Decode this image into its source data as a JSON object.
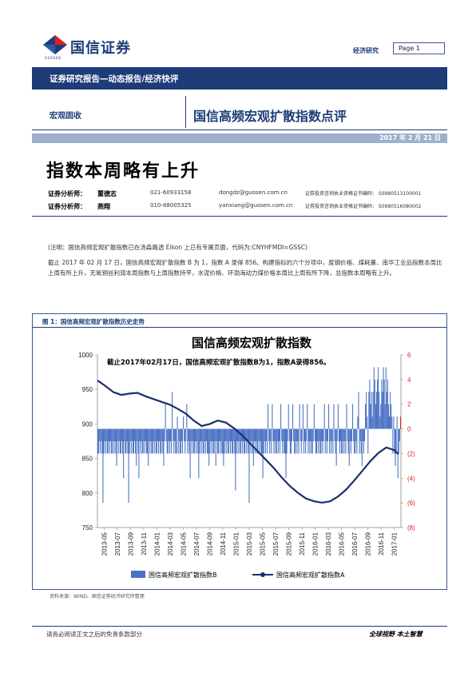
{
  "header": {
    "logo_text": "国信证券",
    "logo_sub": "GUOSEN",
    "report_category": "经济研究",
    "page_label": "Page 1"
  },
  "band": {
    "text": "证券研究报告—动态报告/经济快评"
  },
  "section": {
    "label": "宏观固收",
    "headline": "国信高频宏观扩散指数点评"
  },
  "date": "2017 年 2 月 21 日",
  "title": "指数本周略有上升",
  "analysts": [
    {
      "role": "证券分析师：",
      "name": "董德志",
      "phone": "021-60933158",
      "email": "dongdz@guosen.com.cn",
      "cert": "证券投资咨询执业资格证书编码：  S0980513100001"
    },
    {
      "role": "证券分析师：",
      "name": "燕翔",
      "phone": "010-88005325",
      "email": "yanxiang@guosen.com.cn",
      "cert": "证券投资咨询执业资格证书编码：  S0980516080002"
    }
  ],
  "note": "(注明：国信高频宏观扩散指数已在汤森路透 Eikon 上已有专属页面，代码为:CNYHFMDI=GSSC)",
  "body_text": "截止 2017 年 02 月 17 日，国信高频宏观扩散指数 B 为 1，指数 A 录得 856。构建指标的六个分项中，废钢价格、煤耗量、南华工业品指数本周比上周有所上升，无氧铜丝利润本周指数与上周指数持平，水泥价格、环渤海动力煤价格本周比上周有所下降，总指数本周略有上升。",
  "figure": {
    "label": "图 1：国信高频宏观扩散指数历史走势",
    "source": "资料来源：WIND、国信证券经济研究所整理"
  },
  "chart_data": {
    "type": "bar+line",
    "title": "国信高频宏观扩散指数",
    "annotation": "截止2017年02月17日，国信高频宏观扩散指数B为1，指数A录得856。",
    "x_tick_labels": [
      "2013-05",
      "2013-07",
      "2013-09",
      "2013-11",
      "2014-01",
      "2014-03",
      "2014-05",
      "2014-07",
      "2014-09",
      "2014-11",
      "2015-01",
      "2015-03",
      "2015-05",
      "2015-07",
      "2015-09",
      "2015-11",
      "2016-01",
      "2016-03",
      "2016-05",
      "2016-07",
      "2016-09",
      "2016-11",
      "2017-01"
    ],
    "left_axis": {
      "ticks": [
        "1000",
        "950",
        "900",
        "850",
        "800",
        "750"
      ],
      "ylim": [
        750,
        1000
      ]
    },
    "right_axis": {
      "ticks": [
        "6",
        "4",
        "2",
        "0",
        "(2)",
        "(4)",
        "(6)",
        "(8)"
      ],
      "ylim": [
        -8,
        6
      ]
    },
    "series": [
      {
        "name": "国信高频宏观扩散指数B",
        "kind": "bar",
        "color": "#4a72c4",
        "last_color": "#e02020",
        "values": [
          -2,
          -2,
          -1,
          -2,
          -1,
          -2,
          -6,
          -2,
          -1,
          -2,
          -1,
          -2,
          -2,
          -1,
          -2,
          -1,
          -2,
          -2,
          -1,
          -2,
          -1,
          -2,
          -3,
          -1,
          -2,
          -1,
          -2,
          -2,
          -1,
          -2,
          -4,
          -1,
          -2,
          -2,
          -1,
          -2,
          -6,
          -2,
          -1,
          -2,
          -1,
          -2,
          -2,
          -1,
          -2,
          -3,
          -1,
          -2,
          -4,
          -1,
          -2,
          -1,
          -2,
          -2,
          -1,
          -2,
          -1,
          -2,
          -2,
          -3,
          -1,
          -2,
          -1,
          -2,
          -2,
          -1,
          -2,
          -1,
          -2,
          -2,
          -1,
          -2,
          -1,
          -2,
          -2,
          -1,
          -2,
          -3,
          -1,
          2,
          -1,
          -2,
          -2,
          -1,
          -2,
          -1,
          -2,
          3,
          -1,
          -2,
          -1,
          -2,
          -2,
          1,
          -2,
          -1,
          -2,
          -2,
          -1,
          -2,
          1,
          -1,
          -2,
          -1,
          2,
          -2,
          -1,
          -2,
          -4,
          -1,
          -2,
          -1,
          -2,
          -2,
          -1,
          -2,
          -1,
          -2,
          -4,
          -2,
          -1,
          -2,
          -1,
          -2,
          -2,
          -1,
          -2,
          -1,
          -2,
          -2,
          -3,
          -2,
          -1,
          -2,
          -1,
          -2,
          -2,
          -1,
          -3,
          -1,
          -2,
          -2,
          -1,
          -2,
          -1,
          -2,
          -2,
          -3,
          -2,
          -1,
          -2,
          -1,
          -2,
          -2,
          -1,
          -2,
          -1,
          -2,
          -2,
          -1,
          -2,
          -5,
          -2,
          -1,
          -2,
          -1,
          -2,
          -2,
          -1,
          -2,
          -1,
          -2,
          -2,
          -1,
          -2,
          -1,
          -2,
          -6,
          -1,
          -2,
          -1,
          -2,
          -3,
          -1,
          -2,
          -1,
          -2,
          -2,
          -1,
          -2,
          -1,
          -2,
          -2,
          -4,
          -2,
          -1,
          -2,
          -1,
          -2,
          2,
          -1,
          -2,
          -1,
          -2,
          2,
          -1,
          -2,
          -1,
          -2,
          -2,
          -1,
          -2,
          -1,
          -2,
          2,
          -1,
          -2,
          -1,
          -2,
          -2,
          -4,
          -2,
          -1,
          2,
          -1,
          -2,
          -2,
          -1,
          2,
          -1,
          -2,
          -2,
          -1,
          -2,
          -1,
          -2,
          2,
          -1,
          -2,
          -1,
          2,
          -2,
          -1,
          -2,
          -1,
          2,
          -2,
          -1,
          -2,
          -1,
          -2,
          -2,
          -1,
          2,
          -1,
          -2,
          -2,
          -1,
          -2,
          -1,
          -2,
          -2,
          -1,
          -2,
          -1,
          2,
          -2,
          -1,
          -2,
          -1,
          2,
          -2,
          -1,
          -2,
          -1,
          -2,
          2,
          -1,
          -2,
          -3,
          -1,
          2,
          -1,
          -2,
          -1,
          -2,
          -2,
          -1,
          -2,
          -1,
          -2,
          2,
          -1,
          -2,
          -3,
          -1,
          -2,
          -1,
          2,
          -1,
          -2,
          -2,
          -1,
          -2,
          1,
          3,
          -2,
          -1,
          -2,
          -3,
          -1,
          -2,
          -1,
          2,
          3,
          1,
          -2,
          3,
          4,
          2,
          3,
          1,
          3,
          5,
          4,
          2,
          3,
          4,
          5,
          3,
          1,
          2,
          4,
          3,
          5,
          4,
          2,
          5,
          3,
          4,
          2,
          1,
          3,
          2,
          1,
          -2,
          1,
          -2,
          -3,
          -2,
          1,
          -4,
          -2,
          -1,
          1
        ]
      },
      {
        "name": "国信高频宏观扩散指数A",
        "kind": "line",
        "color": "#1a2f6e",
        "anchor_points": [
          [
            0,
            963
          ],
          [
            10,
            955
          ],
          [
            20,
            946
          ],
          [
            30,
            942
          ],
          [
            40,
            944
          ],
          [
            50,
            945
          ],
          [
            60,
            940
          ],
          [
            70,
            936
          ],
          [
            80,
            932
          ],
          [
            90,
            928
          ],
          [
            100,
            922
          ],
          [
            110,
            915
          ],
          [
            120,
            905
          ],
          [
            130,
            897
          ],
          [
            140,
            900
          ],
          [
            150,
            905
          ],
          [
            160,
            902
          ],
          [
            170,
            894
          ],
          [
            180,
            884
          ],
          [
            190,
            872
          ],
          [
            200,
            860
          ],
          [
            210,
            848
          ],
          [
            220,
            836
          ],
          [
            230,
            822
          ],
          [
            240,
            810
          ],
          [
            250,
            800
          ],
          [
            260,
            792
          ],
          [
            270,
            788
          ],
          [
            280,
            786
          ],
          [
            290,
            788
          ],
          [
            300,
            795
          ],
          [
            310,
            805
          ],
          [
            320,
            818
          ],
          [
            330,
            832
          ],
          [
            340,
            846
          ],
          [
            350,
            858
          ],
          [
            360,
            866
          ],
          [
            370,
            862
          ],
          [
            375,
            856
          ]
        ]
      }
    ],
    "legend_position": "bottom"
  },
  "footer": {
    "left": "请务必阅读正文之后的免责条款部分",
    "right": "全球视野   本土智慧"
  },
  "colors": {
    "brand": "#1d3c78",
    "bar": "#4a72c4",
    "line": "#1a2f6e",
    "last_bar": "#e02020"
  }
}
